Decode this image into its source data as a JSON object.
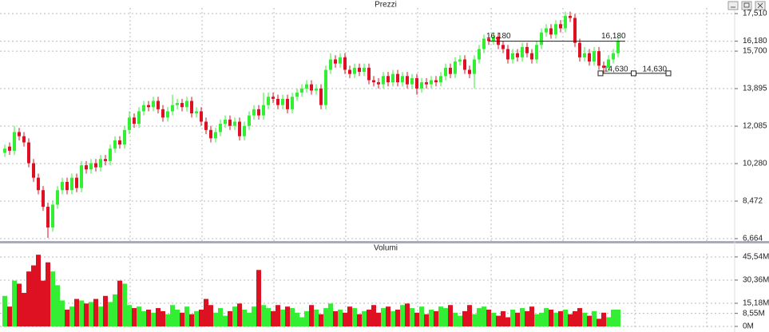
{
  "chart_data": [
    {
      "type": "candlestick",
      "title": "Prezzi",
      "up_color": "#33ee33",
      "down_color": "#dd1122",
      "grid": true,
      "ylim": [
        6.51,
        17.78
      ],
      "yticks": [
        {
          "value": 17.51,
          "label": "17,510"
        },
        {
          "value": 16.18,
          "label": "16,180"
        },
        {
          "value": 15.7,
          "label": "15,700"
        },
        {
          "value": 13.895,
          "label": "13,895"
        },
        {
          "value": 12.085,
          "label": "12,085"
        },
        {
          "value": 10.28,
          "label": "10,280"
        },
        {
          "value": 8.472,
          "label": "8,472"
        },
        {
          "value": 6.664,
          "label": "6,664"
        }
      ],
      "hlines": [
        {
          "value": 16.18,
          "labels": [
            "16,180",
            "16,180"
          ]
        },
        {
          "value": 14.63,
          "labels": [
            "14,630",
            "14,630"
          ]
        }
      ],
      "open": [
        10.8,
        11.1,
        10.9,
        11.8,
        11.6,
        11.3,
        10.3,
        9.6,
        9.0,
        8.2,
        7.2,
        8.3,
        9.0,
        9.4,
        9.0,
        9.6,
        9.1,
        10.2,
        10.0,
        10.3,
        10.1,
        10.5,
        10.4,
        11.0,
        11.4,
        11.2,
        11.9,
        12.5,
        12.2,
        12.8,
        13.1,
        13.0,
        13.3,
        12.9,
        12.5,
        12.8,
        13.1,
        13.2,
        13.0,
        13.3,
        12.7,
        12.8,
        12.3,
        11.9,
        11.5,
        11.8,
        12.2,
        12.4,
        12.1,
        12.3,
        11.6,
        12.1,
        12.6,
        12.9,
        12.6,
        13.1,
        13.5,
        13.4,
        13.1,
        13.4,
        12.9,
        13.5,
        13.7,
        13.9,
        14.1,
        13.8,
        13.9,
        13.1,
        14.8,
        15.3,
        15.1,
        15.4,
        14.8,
        14.6,
        14.9,
        14.7,
        14.9,
        14.3,
        14.2,
        14.1,
        14.5,
        14.2,
        14.6,
        14.2,
        14.5,
        14.1,
        14.4,
        13.9,
        14.2,
        14.1,
        14.3,
        14.2,
        14.5,
        14.9,
        14.6,
        15.2,
        15.3,
        14.8,
        14.6,
        15.3,
        15.8,
        16.3,
        16.2,
        16.4,
        16.0,
        15.8,
        15.3,
        15.6,
        15.4,
        15.9,
        15.6,
        15.3,
        16.0,
        16.6,
        16.8,
        16.5,
        17.0,
        16.8,
        17.4,
        17.3,
        16.1,
        15.4,
        15.6,
        15.2,
        15.7,
        15.0,
        14.9,
        15.3,
        15.6
      ],
      "high": [
        11.2,
        11.3,
        12.1,
        12.0,
        11.8,
        11.5,
        10.5,
        9.8,
        9.2,
        8.4,
        8.5,
        9.2,
        9.6,
        9.6,
        9.8,
        9.8,
        10.4,
        10.4,
        10.5,
        10.5,
        10.7,
        10.7,
        11.2,
        11.6,
        11.6,
        12.1,
        12.8,
        12.7,
        13.0,
        13.3,
        13.3,
        13.5,
        13.5,
        13.1,
        13.0,
        13.6,
        13.4,
        13.4,
        13.5,
        13.5,
        13.0,
        13.0,
        12.5,
        12.1,
        12.0,
        12.4,
        12.6,
        12.6,
        12.5,
        12.5,
        12.3,
        12.8,
        13.1,
        13.1,
        13.7,
        13.7,
        13.7,
        13.6,
        13.6,
        13.6,
        13.7,
        13.9,
        14.1,
        14.3,
        14.3,
        14.1,
        14.1,
        15.0,
        15.6,
        15.5,
        15.6,
        15.6,
        15.0,
        15.1,
        15.1,
        15.1,
        15.1,
        14.5,
        14.4,
        14.7,
        14.7,
        14.8,
        14.8,
        14.7,
        14.7,
        14.6,
        14.6,
        14.4,
        14.4,
        14.5,
        14.5,
        14.7,
        15.1,
        15.1,
        15.4,
        15.5,
        15.5,
        15.0,
        15.5,
        16.0,
        16.5,
        16.5,
        16.6,
        16.6,
        16.2,
        16.0,
        15.8,
        15.8,
        16.1,
        16.1,
        15.8,
        16.2,
        16.8,
        17.0,
        17.0,
        17.2,
        17.2,
        17.6,
        17.6,
        17.5,
        16.3,
        15.9,
        15.8,
        15.9,
        15.9,
        15.2,
        15.5,
        15.8,
        16.4
      ],
      "low": [
        10.6,
        10.7,
        10.7,
        11.4,
        11.1,
        10.1,
        9.4,
        8.8,
        8.0,
        6.7,
        7.0,
        8.1,
        8.8,
        8.8,
        8.8,
        8.9,
        8.9,
        9.8,
        9.8,
        9.9,
        9.9,
        10.2,
        10.2,
        10.8,
        11.0,
        11.0,
        11.7,
        12.0,
        12.0,
        12.6,
        12.8,
        12.8,
        12.7,
        12.3,
        12.3,
        12.6,
        12.9,
        12.8,
        12.8,
        12.5,
        12.5,
        12.1,
        11.7,
        11.3,
        11.3,
        11.6,
        12.0,
        11.9,
        11.9,
        11.4,
        11.4,
        11.9,
        12.4,
        12.4,
        12.4,
        12.9,
        13.2,
        12.9,
        12.9,
        12.7,
        12.7,
        13.3,
        13.5,
        13.7,
        13.6,
        13.6,
        12.9,
        12.9,
        14.6,
        14.9,
        14.9,
        14.6,
        14.4,
        14.4,
        14.5,
        14.5,
        14.1,
        14.0,
        13.9,
        13.9,
        14.0,
        14.0,
        14.0,
        14.0,
        13.9,
        13.9,
        13.6,
        13.7,
        13.9,
        13.9,
        14.0,
        14.0,
        14.3,
        14.4,
        14.4,
        15.0,
        14.6,
        14.4,
        13.9,
        15.1,
        15.6,
        16.0,
        16.0,
        15.8,
        15.6,
        15.1,
        15.1,
        15.2,
        15.2,
        15.4,
        15.1,
        15.1,
        15.8,
        16.4,
        16.3,
        16.3,
        16.6,
        16.6,
        17.1,
        15.9,
        15.2,
        15.2,
        15.0,
        15.0,
        14.8,
        14.63,
        14.7,
        15.1,
        15.4
      ],
      "close": [
        11.0,
        10.9,
        11.8,
        11.6,
        11.3,
        10.3,
        9.6,
        9.0,
        8.2,
        7.2,
        8.3,
        9.0,
        9.4,
        9.0,
        9.6,
        9.1,
        10.2,
        10.0,
        10.3,
        10.1,
        10.5,
        10.4,
        11.0,
        11.4,
        11.2,
        11.9,
        12.5,
        12.2,
        12.8,
        13.1,
        13.0,
        13.3,
        12.9,
        12.5,
        12.8,
        13.1,
        13.2,
        13.0,
        13.3,
        12.7,
        12.8,
        12.3,
        11.9,
        11.5,
        11.8,
        12.2,
        12.4,
        12.1,
        12.3,
        11.6,
        12.1,
        12.6,
        12.9,
        12.6,
        13.1,
        13.5,
        13.4,
        13.1,
        13.4,
        12.9,
        13.5,
        13.7,
        13.9,
        14.1,
        13.8,
        13.9,
        13.1,
        14.8,
        15.3,
        15.1,
        15.4,
        14.8,
        14.6,
        14.9,
        14.7,
        14.9,
        14.3,
        14.2,
        14.1,
        14.5,
        14.2,
        14.6,
        14.2,
        14.5,
        14.1,
        14.4,
        13.9,
        14.2,
        14.1,
        14.3,
        14.2,
        14.5,
        14.9,
        14.6,
        15.2,
        15.3,
        14.8,
        14.6,
        15.3,
        15.8,
        16.3,
        16.2,
        16.4,
        16.0,
        15.8,
        15.3,
        15.6,
        15.4,
        15.9,
        15.6,
        15.3,
        16.0,
        16.6,
        16.8,
        16.5,
        17.0,
        16.8,
        17.4,
        17.3,
        16.1,
        15.4,
        15.6,
        15.2,
        15.7,
        15.0,
        14.9,
        15.3,
        15.6,
        16.2
      ]
    },
    {
      "type": "bar",
      "title": "Volumi",
      "grid": true,
      "ylim": [
        0,
        47.6
      ],
      "yticks": [
        {
          "value": 45.54,
          "label": "45,54M"
        },
        {
          "value": 30.36,
          "label": "30,36M"
        },
        {
          "value": 15.18,
          "label": "15,18M"
        },
        {
          "value": 8.55,
          "label": "8,55M"
        },
        {
          "value": 0,
          "label": "0M"
        }
      ],
      "values": [
        20,
        13,
        30,
        28,
        22,
        36,
        40,
        47,
        30,
        42,
        36,
        27,
        17,
        11,
        13,
        18,
        17,
        15,
        16,
        18,
        13,
        20,
        16,
        21,
        30,
        28,
        14,
        12,
        13,
        10,
        11,
        9,
        12,
        10,
        8,
        14,
        11,
        9,
        13,
        8,
        10,
        11,
        18,
        14,
        9,
        12,
        7,
        10,
        13,
        15,
        11,
        9,
        13,
        37,
        14,
        12,
        10,
        14,
        11,
        13,
        12,
        9,
        6,
        10,
        14,
        11,
        8,
        12,
        15,
        10,
        11,
        9,
        13,
        12,
        8,
        10,
        11,
        14,
        9,
        12,
        13,
        10,
        11,
        14,
        15,
        12,
        9,
        13,
        8,
        11,
        10,
        13,
        12,
        14,
        9,
        7,
        10,
        14,
        8,
        12,
        13,
        11,
        9,
        7,
        10,
        6,
        11,
        9,
        12,
        10,
        13,
        8,
        9,
        12,
        11,
        9,
        10,
        11,
        8,
        10,
        12,
        9,
        7,
        10,
        5,
        9,
        6,
        11,
        11
      ]
    }
  ]
}
